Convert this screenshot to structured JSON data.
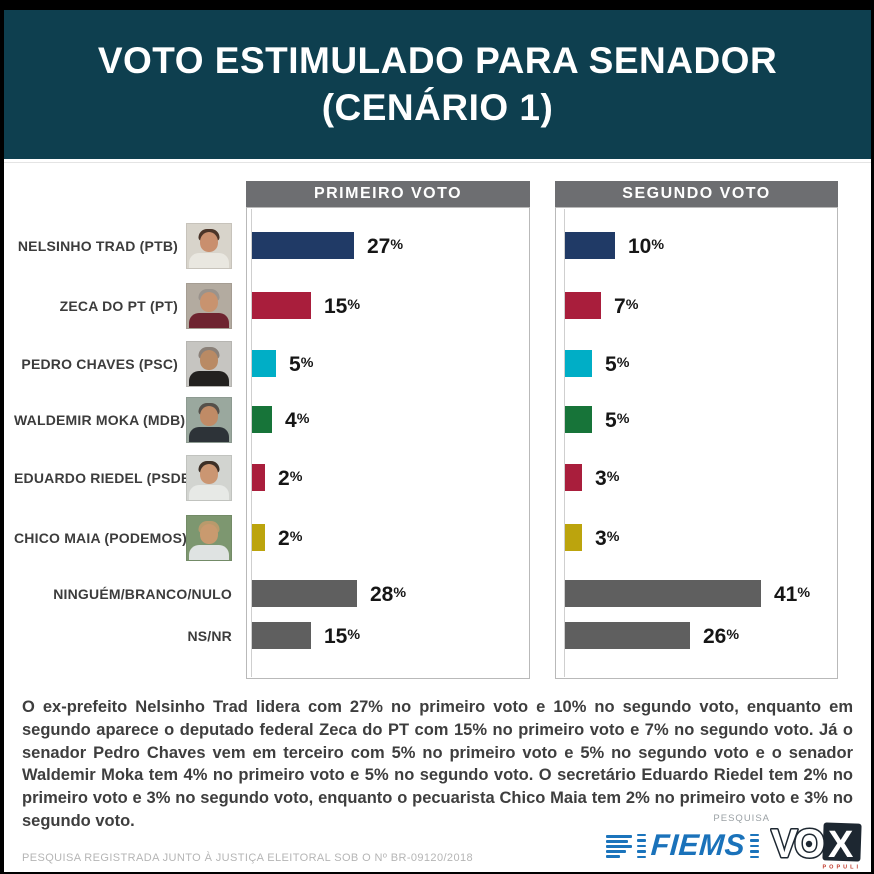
{
  "header": {
    "title_line1": "VOTO ESTIMULADO PARA SENADOR",
    "title_line2": "(CENÁRIO 1)",
    "bg_color": "#0e3f4f"
  },
  "panels": [
    {
      "label": "PRIMEIRO VOTO"
    },
    {
      "label": "SEGUNDO VOTO"
    }
  ],
  "panel_header_color": "#6d6e71",
  "chart_data": {
    "type": "bar",
    "orientation": "horizontal",
    "title": "VOTO ESTIMULADO PARA SENADOR (CENÁRIO 1)",
    "categories": [
      "NELSINHO TRAD (PTB)",
      "ZECA DO PT (PT)",
      "PEDRO CHAVES (PSC)",
      "WALDEMIR MOKA (MDB)",
      "EDUARDO RIEDEL (PSDB)",
      "CHICO MAIA (PODEMOS)",
      "NINGUÉM/BRANCO/NULO",
      "NS/NR"
    ],
    "series": [
      {
        "name": "PRIMEIRO VOTO",
        "values": [
          27,
          15,
          5,
          4,
          2,
          2,
          28,
          15
        ]
      },
      {
        "name": "SEGUNDO VOTO",
        "values": [
          10,
          7,
          5,
          5,
          3,
          3,
          41,
          26
        ]
      }
    ],
    "value_suffix": "%",
    "bar_colors": [
      "#203a66",
      "#a91e3c",
      "#00aec6",
      "#177439",
      "#a91e3c",
      "#bca40d",
      "#5f5f5f",
      "#5f5f5f"
    ],
    "has_photo": [
      true,
      true,
      true,
      true,
      true,
      true,
      false,
      false
    ],
    "xlim": [
      0,
      45
    ],
    "grid": false,
    "legend_position": "panel-headers"
  },
  "photos": [
    {
      "name": "nelsinho-trad",
      "bg": "#d8d4cb",
      "hair": "#4a3428",
      "skin": "#c98f6e",
      "torso": "#e9e7e0"
    },
    {
      "name": "zeca-do-pt",
      "bg": "#b3aba0",
      "hair": "#9a938c",
      "skin": "#c8936f",
      "torso": "#6e2430"
    },
    {
      "name": "pedro-chaves",
      "bg": "#c6c5c1",
      "hair": "#8a8078",
      "skin": "#b98a64",
      "torso": "#23211f"
    },
    {
      "name": "waldemir-moka",
      "bg": "#9aa89e",
      "hair": "#55504a",
      "skin": "#c08b66",
      "torso": "#2d3338"
    },
    {
      "name": "eduardo-riedel",
      "bg": "#d2d4d0",
      "hair": "#3c2f26",
      "skin": "#cb9672",
      "torso": "#e7e9e6"
    },
    {
      "name": "chico-maia",
      "bg": "#7d9770",
      "hair": "#b99a6c",
      "skin": "#c99a6f",
      "torso": "#dfe3e2"
    }
  ],
  "summary": "O ex-prefeito Nelsinho Trad lidera com 27% no primeiro voto e 10% no segundo voto, enquanto em segundo aparece o deputado federal Zeca do PT com 15% no primeiro voto e 7% no segundo voto. Já o senador Pedro Chaves vem em terceiro com 5% no primeiro voto e 5% no segundo voto e o senador Waldemir Moka tem 4% no primeiro voto e 5% no segundo voto. O secretário Eduardo Riedel tem 2% no primeiro voto e 3% no segundo voto, enquanto o pecuarista Chico Maia tem 2% no primeiro voto e 3% no segundo voto.",
  "footer": {
    "registration": "PESQUISA REGISTRADA JUNTO À JUSTIÇA ELEITORAL SOB O Nº BR-09120/2018",
    "pesquisa_label": "PESQUISA",
    "fiems_label": "FIEMS",
    "vox_letters": {
      "v": "V",
      "o": "O",
      "x": "X",
      "sub": "POPULI"
    }
  }
}
